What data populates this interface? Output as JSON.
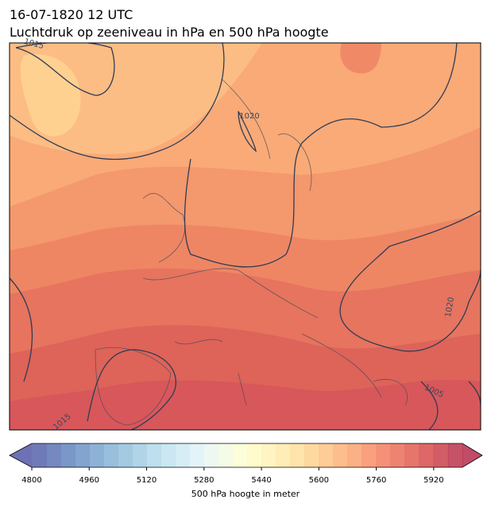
{
  "header": {
    "date": "16-07-1820 12 UTC",
    "description": "Luchtdruk op zeeniveau in hPa en 500 hPa hoogte"
  },
  "map": {
    "contour_labels": [
      "1015",
      "1020",
      "1020",
      "1005",
      "1015"
    ]
  },
  "colorbar": {
    "label": "500 hPa hoogte in meter",
    "lim": [
      4800,
      6000
    ],
    "step": 40,
    "ticks": [
      4800,
      4960,
      5120,
      5280,
      5440,
      5600,
      5760,
      5920
    ],
    "colormap": [
      "#313695",
      "#4575b4",
      "#74add1",
      "#abd9e9",
      "#e0f3f8",
      "#ffffbf",
      "#fee090",
      "#fdae61",
      "#f46d43",
      "#d73027",
      "#a50026"
    ],
    "alpha": 0.7
  }
}
